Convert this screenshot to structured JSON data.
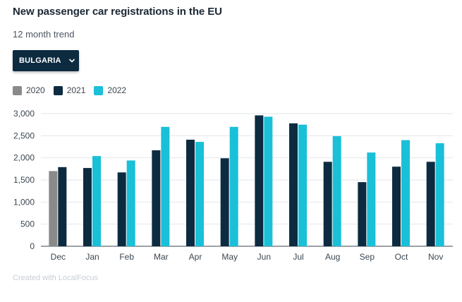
{
  "header": {
    "title": "New passenger car registrations in the EU",
    "subtitle": "12 month trend"
  },
  "selector": {
    "selected": "BULGARIA",
    "icon": "chevron-down-icon"
  },
  "footer": {
    "credit": "Created with LocalFocus"
  },
  "colors": {
    "2020": "#8a8a8a",
    "2021": "#0d2b40",
    "2022": "#19c0d8"
  },
  "chart_data": {
    "type": "bar",
    "title": "New passenger car registrations in the EU",
    "xlabel": "",
    "ylabel": "",
    "ylim": [
      0,
      3000
    ],
    "yticks": [
      "0",
      "500",
      "1,000",
      "1,500",
      "2,000",
      "2,500",
      "3,000"
    ],
    "ytick_values": [
      0,
      500,
      1000,
      1500,
      2000,
      2500,
      3000
    ],
    "categories": [
      "Dec",
      "Jan",
      "Feb",
      "Mar",
      "Apr",
      "May",
      "Jun",
      "Jul",
      "Aug",
      "Sep",
      "Oct",
      "Nov"
    ],
    "legend_position": "top-left",
    "series": [
      {
        "name": "2020",
        "values": [
          1700,
          null,
          null,
          null,
          null,
          null,
          null,
          null,
          null,
          null,
          null,
          null
        ]
      },
      {
        "name": "2021",
        "values": [
          1790,
          1770,
          1670,
          2170,
          2410,
          1990,
          2960,
          2780,
          1910,
          1450,
          1800,
          1910
        ]
      },
      {
        "name": "2022",
        "values": [
          null,
          2040,
          1940,
          2700,
          2360,
          2700,
          2930,
          2750,
          2490,
          2120,
          2400,
          2330
        ]
      }
    ]
  }
}
